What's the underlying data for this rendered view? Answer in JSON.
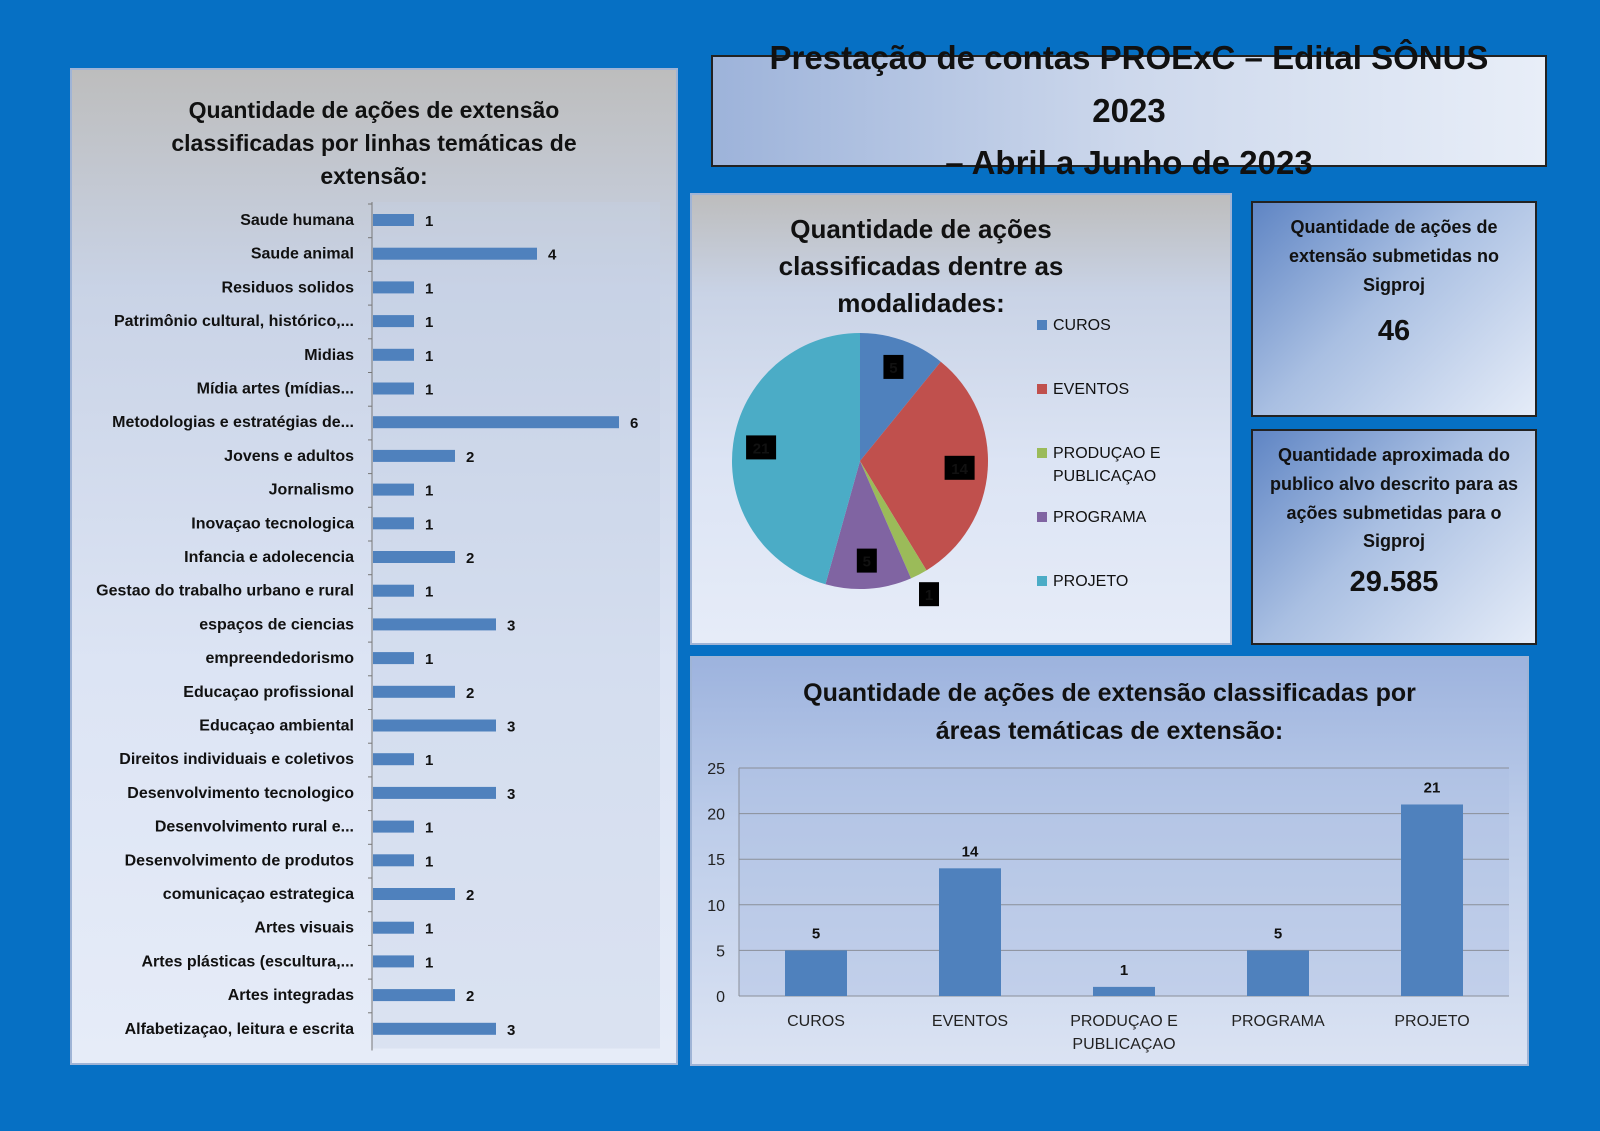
{
  "header": {
    "title_line1": "Prestação de contas PROExC – Edital SÔNUS 2023",
    "title_line2": "– Abril a Junho de 2023"
  },
  "stats": [
    {
      "label_lines": [
        "Quantidade de ações de",
        "extensão submetidas no",
        "Sigproj"
      ],
      "value": "46"
    },
    {
      "label_lines": [
        "Quantidade aproximada do",
        "publico alvo descrito para as",
        "ações submetidas para o",
        "Sigproj"
      ],
      "value": "29.585"
    }
  ],
  "colors": {
    "bar": "#4f81bd",
    "pie": [
      "#4f81bd",
      "#c0504d",
      "#9bbb59",
      "#8064a2",
      "#4bacc6"
    ]
  },
  "chart_data": [
    {
      "type": "bar",
      "orientation": "horizontal",
      "title_lines": [
        "Quantidade de ações de extensão",
        "classificadas por linhas temáticas de",
        "extensão:"
      ],
      "categories": [
        "Saude humana",
        "Saude animal",
        "Residuos solidos",
        "Patrimônio cultural, histórico,...",
        "Midias",
        "Mídia artes (mídias...",
        "Metodologias e estratégias de...",
        "Jovens e adultos",
        "Jornalismo",
        "Inovaçao tecnologica",
        "Infancia e adolecencia",
        "Gestao do trabalho urbano e rural",
        "espaços de ciencias",
        "empreendedorismo",
        "Educaçao profissional",
        "Educaçao ambiental",
        "Direitos individuais e coletivos",
        "Desenvolvimento tecnologico",
        "Desenvolvimento rural e...",
        "Desenvolvimento de produtos",
        "comunicaçao estrategica",
        "Artes visuais",
        "Artes plásticas (escultura,...",
        "Artes integradas",
        "Alfabetizaçao, leitura e escrita"
      ],
      "values": [
        1,
        4,
        1,
        1,
        1,
        1,
        6,
        2,
        1,
        1,
        2,
        1,
        3,
        1,
        2,
        3,
        1,
        3,
        1,
        1,
        2,
        1,
        1,
        2,
        3
      ],
      "xlim": [
        0,
        6
      ]
    },
    {
      "type": "pie",
      "title_lines": [
        "Quantidade de ações",
        "classificadas dentre as",
        "modalidades:"
      ],
      "categories": [
        "CUROS",
        "EVENTOS",
        "PRODUÇAO E PUBLICAÇAO",
        "PROGRAMA",
        "PROJETO"
      ],
      "legend_lines": [
        [
          "CUROS"
        ],
        [
          "EVENTOS"
        ],
        [
          "PRODUÇAO E",
          "PUBLICAÇAO"
        ],
        [
          "PROGRAMA"
        ],
        [
          "PROJETO"
        ]
      ],
      "values": [
        5,
        14,
        1,
        5,
        21
      ],
      "legend": "right"
    },
    {
      "type": "bar",
      "orientation": "vertical",
      "title_lines": [
        "Quantidade de ações de extensão classificadas por",
        "áreas temáticas de extensão:"
      ],
      "categories": [
        "CUROS",
        "EVENTOS",
        "PRODUÇAO E PUBLICAÇAO",
        "PROGRAMA",
        "PROJETO"
      ],
      "category_lines": [
        [
          "CUROS"
        ],
        [
          "EVENTOS"
        ],
        [
          "PRODUÇAO E",
          "PUBLICAÇAO"
        ],
        [
          "PROGRAMA"
        ],
        [
          "PROJETO"
        ]
      ],
      "values": [
        5,
        14,
        1,
        5,
        21
      ],
      "ylim": [
        0,
        25
      ],
      "yticks": [
        0,
        5,
        10,
        15,
        20,
        25
      ],
      "grid": true
    }
  ]
}
